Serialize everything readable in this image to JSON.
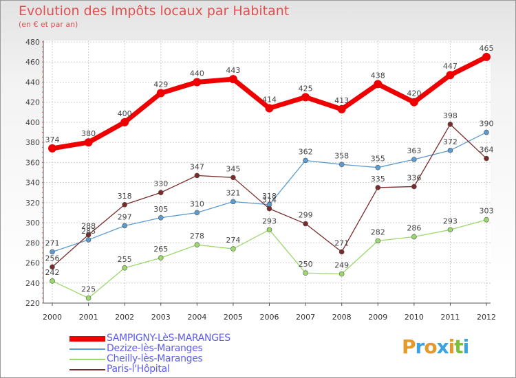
{
  "header": {
    "title": "Evolution des Impôts locaux par Habitant",
    "subtitle": "(en € et par an)"
  },
  "logo": {
    "letters": [
      "P",
      "r",
      "o",
      "x",
      "i",
      "t",
      "i"
    ],
    "colors": [
      "#e39a2a",
      "#3aa3e0",
      "#e39a2a",
      "#3aa3e0",
      "#e39a2a",
      "#7cc03a",
      "#3aa3e0"
    ]
  },
  "chart_data": {
    "type": "line",
    "title": "Evolution des Impôts locaux par Habitant",
    "subtitle": "(en € et par an)",
    "x": [
      "2000",
      "2001",
      "2002",
      "2003",
      "2004",
      "2005",
      "2006",
      "2007",
      "2008",
      "2009",
      "2010",
      "2011",
      "2012"
    ],
    "ylim": [
      220,
      480
    ],
    "yticks": [
      220,
      240,
      260,
      280,
      300,
      320,
      340,
      360,
      380,
      400,
      420,
      440,
      460,
      480
    ],
    "grid": true,
    "legend_position": "bottom-left",
    "series": [
      {
        "name": "SAMPIGNY-LèS-MARANGES",
        "color": "#ee0000",
        "highlight": true,
        "values": [
          374,
          380,
          400,
          429,
          440,
          443,
          414,
          425,
          413,
          438,
          420,
          447,
          465
        ]
      },
      {
        "name": "Dezize-lès-Maranges",
        "color": "#5b9bd0",
        "highlight": false,
        "values": [
          271,
          283,
          297,
          305,
          310,
          321,
          318,
          362,
          358,
          355,
          363,
          372,
          390
        ]
      },
      {
        "name": "Cheilly-lès-Maranges",
        "color": "#9ad86a",
        "highlight": false,
        "values": [
          242,
          225,
          255,
          265,
          278,
          274,
          293,
          250,
          249,
          282,
          286,
          293,
          303
        ]
      },
      {
        "name": "Paris-l'Hôpital",
        "color": "#7a2a2a",
        "highlight": false,
        "values": [
          256,
          288,
          318,
          330,
          347,
          345,
          314,
          299,
          271,
          335,
          336,
          398,
          364
        ]
      }
    ]
  }
}
